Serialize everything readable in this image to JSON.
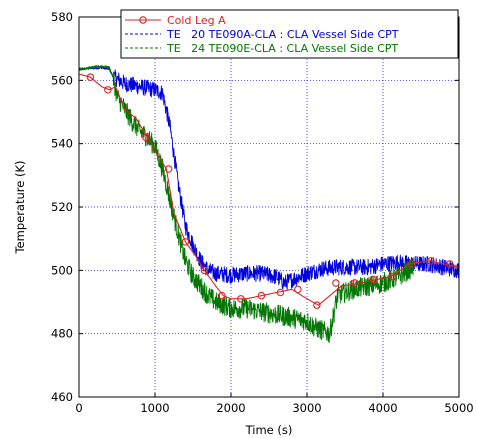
{
  "chart_data": {
    "type": "line",
    "xlabel": "Time (s)",
    "ylabel": "Temperature (K)",
    "xlim": [
      0,
      5000
    ],
    "ylim": [
      460,
      580
    ],
    "x_ticks": [
      "0",
      "1000",
      "2000",
      "3000",
      "4000",
      "5000"
    ],
    "y_ticks": [
      "460",
      "480",
      "500",
      "520",
      "540",
      "560",
      "580"
    ],
    "grid": true,
    "legend_position": "top-right",
    "series": [
      {
        "name": "Cold Leg A",
        "color": "#dd2222",
        "style": "solid-circle-markers",
        "points": [
          [
            0,
            562
          ],
          [
            150,
            561
          ],
          [
            300,
            558
          ],
          [
            400,
            557
          ],
          [
            480,
            558
          ],
          [
            600,
            551
          ],
          [
            750,
            548
          ],
          [
            900,
            542
          ],
          [
            1050,
            536
          ],
          [
            1150,
            532
          ],
          [
            1250,
            518
          ],
          [
            1400,
            509
          ],
          [
            1550,
            504
          ],
          [
            1650,
            500
          ],
          [
            1800,
            495
          ],
          [
            1900,
            492
          ],
          [
            2000,
            491
          ],
          [
            2200,
            491
          ],
          [
            2400,
            492
          ],
          [
            2600,
            493
          ],
          [
            2800,
            494
          ],
          [
            3000,
            491
          ],
          [
            3150,
            489
          ],
          [
            3300,
            492
          ],
          [
            3450,
            495
          ],
          [
            3700,
            496
          ],
          [
            3900,
            497
          ],
          [
            4100,
            498
          ],
          [
            4350,
            502
          ],
          [
            4600,
            503
          ],
          [
            4800,
            502
          ],
          [
            5000,
            501
          ]
        ],
        "markers": [
          [
            150,
            561
          ],
          [
            380,
            557
          ],
          [
            880,
            542
          ],
          [
            1180,
            532
          ],
          [
            1400,
            509
          ],
          [
            1650,
            500
          ],
          [
            1880,
            492
          ],
          [
            2130,
            491
          ],
          [
            2400,
            492
          ],
          [
            2650,
            493
          ],
          [
            2880,
            494
          ],
          [
            3130,
            489
          ],
          [
            3380,
            496
          ],
          [
            3630,
            496
          ],
          [
            3880,
            497
          ],
          [
            4130,
            498
          ],
          [
            4380,
            502
          ],
          [
            4630,
            503
          ],
          [
            4880,
            502
          ]
        ]
      },
      {
        "name": "TE   20 TE090A-CLA : CLA Vessel Side CPT",
        "color": "#0000dd",
        "style": "dashed",
        "points": [
          [
            0,
            563.5
          ],
          [
            150,
            563.8
          ],
          [
            300,
            564
          ],
          [
            400,
            563.5
          ],
          [
            450,
            561
          ],
          [
            500,
            560.5
          ],
          [
            600,
            559
          ],
          [
            700,
            558.5
          ],
          [
            800,
            558
          ],
          [
            900,
            557.5
          ],
          [
            1000,
            557
          ],
          [
            1100,
            556
          ],
          [
            1200,
            545
          ],
          [
            1300,
            528
          ],
          [
            1400,
            514
          ],
          [
            1500,
            508
          ],
          [
            1600,
            503
          ],
          [
            1700,
            500
          ],
          [
            1800,
            499
          ],
          [
            2000,
            498.5
          ],
          [
            2200,
            499
          ],
          [
            2400,
            499
          ],
          [
            2600,
            498
          ],
          [
            2700,
            496
          ],
          [
            2800,
            497
          ],
          [
            3000,
            499
          ],
          [
            3200,
            500.5
          ],
          [
            3400,
            501
          ],
          [
            3600,
            501
          ],
          [
            3800,
            501
          ],
          [
            4000,
            502
          ],
          [
            4200,
            502.5
          ],
          [
            4400,
            502
          ],
          [
            4600,
            502
          ],
          [
            4800,
            501
          ],
          [
            5000,
            500
          ]
        ],
        "noise": 2.6
      },
      {
        "name": "TE   24 TE090E-CLA : CLA Vessel Side CPT",
        "color": "#007700",
        "style": "dashed",
        "points": [
          [
            0,
            563.5
          ],
          [
            150,
            564
          ],
          [
            300,
            564.5
          ],
          [
            400,
            564
          ],
          [
            450,
            561
          ],
          [
            500,
            555
          ],
          [
            600,
            551
          ],
          [
            700,
            547
          ],
          [
            800,
            544
          ],
          [
            900,
            542
          ],
          [
            1000,
            539
          ],
          [
            1100,
            532
          ],
          [
            1200,
            522
          ],
          [
            1300,
            512
          ],
          [
            1400,
            503
          ],
          [
            1500,
            498
          ],
          [
            1600,
            495
          ],
          [
            1700,
            492
          ],
          [
            1800,
            490
          ],
          [
            2000,
            488
          ],
          [
            2200,
            488
          ],
          [
            2400,
            487
          ],
          [
            2600,
            486
          ],
          [
            2800,
            485
          ],
          [
            3000,
            484
          ],
          [
            3100,
            482
          ],
          [
            3200,
            481
          ],
          [
            3300,
            480
          ],
          [
            3350,
            486
          ],
          [
            3400,
            492
          ],
          [
            3600,
            494
          ],
          [
            3800,
            495
          ],
          [
            4000,
            496
          ],
          [
            4200,
            498
          ],
          [
            4400,
            501
          ]
        ],
        "noise": 3.2
      }
    ]
  }
}
